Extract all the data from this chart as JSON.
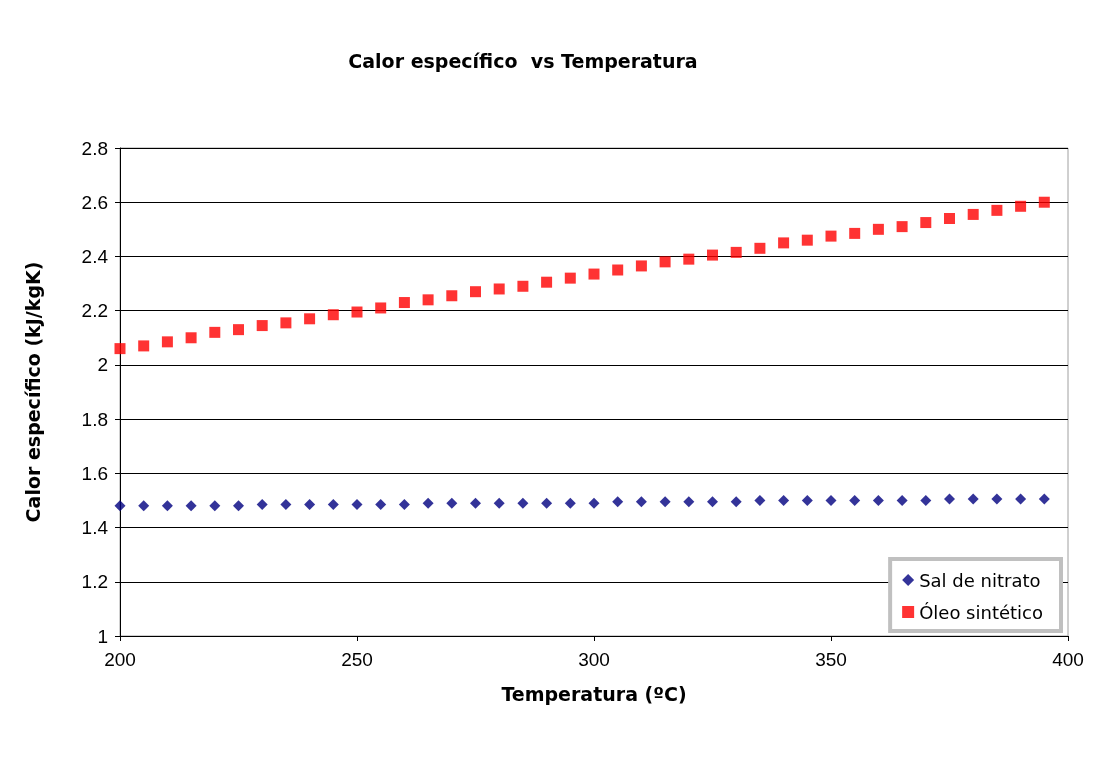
{
  "chart_data": {
    "type": "scatter",
    "title": "Calor específico  vs Temperatura",
    "xlabel": "Temperatura (ºC)",
    "ylabel": "Calor específico (kJ/kgK)",
    "x": [
      200,
      205,
      210,
      215,
      220,
      225,
      230,
      235,
      240,
      245,
      250,
      255,
      260,
      265,
      270,
      275,
      280,
      285,
      290,
      295,
      300,
      305,
      310,
      315,
      320,
      325,
      330,
      335,
      340,
      345,
      350,
      355,
      360,
      365,
      370,
      375,
      380,
      385,
      390,
      395
    ],
    "series": [
      {
        "name": "Sal de nitrato",
        "color": "#000080",
        "marker": "diamond",
        "values": [
          1.48,
          1.48,
          1.48,
          1.48,
          1.48,
          1.48,
          1.485,
          1.485,
          1.485,
          1.485,
          1.485,
          1.485,
          1.485,
          1.49,
          1.49,
          1.49,
          1.49,
          1.49,
          1.49,
          1.49,
          1.49,
          1.495,
          1.495,
          1.495,
          1.495,
          1.495,
          1.495,
          1.5,
          1.5,
          1.5,
          1.5,
          1.5,
          1.5,
          1.5,
          1.5,
          1.505,
          1.505,
          1.505,
          1.505,
          1.505
        ]
      },
      {
        "name": "Óleo sintético",
        "color": "#ff0000",
        "marker": "square",
        "values": [
          2.06,
          2.07,
          2.085,
          2.1,
          2.12,
          2.13,
          2.145,
          2.155,
          2.17,
          2.185,
          2.195,
          2.21,
          2.23,
          2.24,
          2.255,
          2.27,
          2.28,
          2.29,
          2.305,
          2.32,
          2.335,
          2.35,
          2.365,
          2.38,
          2.39,
          2.405,
          2.415,
          2.43,
          2.45,
          2.46,
          2.475,
          2.485,
          2.5,
          2.51,
          2.525,
          2.54,
          2.555,
          2.57,
          2.585,
          2.6
        ]
      }
    ],
    "xlim": [
      200,
      400
    ],
    "xticks": [
      200,
      250,
      300,
      350,
      400
    ],
    "ylim": [
      1,
      2.8
    ],
    "yticks": [
      1,
      1.2,
      1.4,
      1.6,
      1.8,
      2,
      2.2,
      2.4,
      2.6,
      2.8
    ],
    "grid": "y",
    "legend": "bottom right"
  }
}
